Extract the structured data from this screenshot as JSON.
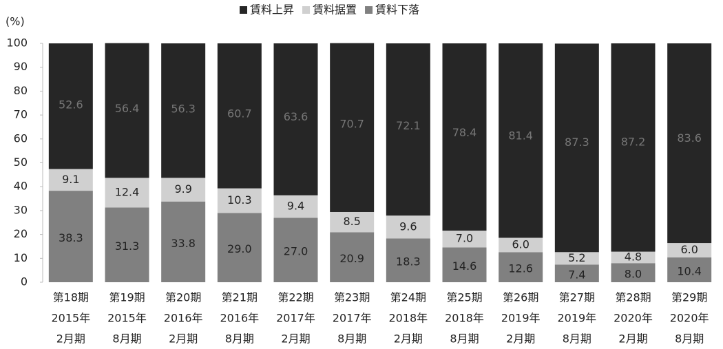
{
  "chart_data": {
    "type": "stacked_bar",
    "ylabel": "(%)",
    "categories": [
      [
        "第18期",
        "2015年",
        "2月期"
      ],
      [
        "第19期",
        "2015年",
        "8月期"
      ],
      [
        "第20期",
        "2016年",
        "2月期"
      ],
      [
        "第21期",
        "2016年",
        "8月期"
      ],
      [
        "第22期",
        "2017年",
        "2月期"
      ],
      [
        "第23期",
        "2017年",
        "8月期"
      ],
      [
        "第24期",
        "2018年",
        "2月期"
      ],
      [
        "第25期",
        "2018年",
        "8月期"
      ],
      [
        "第26期",
        "2019年",
        "2月期"
      ],
      [
        "第27期",
        "2019年",
        "8月期"
      ],
      [
        "第28期",
        "2020年",
        "2月期"
      ],
      [
        "第29期",
        "2020年",
        "8月期"
      ]
    ],
    "series": [
      {
        "name": "賃料上昇",
        "color": "#262626",
        "values": [
          52.6,
          56.4,
          56.3,
          60.7,
          63.6,
          70.7,
          72.1,
          78.4,
          81.4,
          87.3,
          87.2,
          83.6
        ]
      },
      {
        "name": "賃料据置",
        "color": "#d0d0d0",
        "values": [
          9.1,
          12.4,
          9.9,
          10.3,
          9.4,
          8.5,
          9.6,
          7.0,
          6.0,
          5.2,
          4.8,
          6.0
        ],
        "value_labels": [
          "9.1",
          "12.4",
          "9.9",
          "10.3",
          "9.4",
          "8.5",
          "9.6",
          "7.0",
          "6.0",
          "5.2",
          "4.8",
          "6.0"
        ]
      },
      {
        "name": "賃料下落",
        "color": "#808080",
        "values": [
          38.3,
          31.3,
          33.8,
          29.0,
          27.0,
          20.9,
          18.3,
          14.6,
          12.6,
          7.4,
          8.0,
          10.4
        ],
        "value_labels": [
          "38.3",
          "31.3",
          "33.8",
          "29.0",
          "27.0",
          "20.9",
          "18.3",
          "14.6",
          "12.6",
          "7.4",
          "8.0",
          "10.4"
        ]
      }
    ],
    "ylim": [
      0,
      100
    ],
    "yticks": [
      0,
      10,
      20,
      30,
      40,
      50,
      60,
      70,
      80,
      90,
      100
    ],
    "legend": "top"
  }
}
